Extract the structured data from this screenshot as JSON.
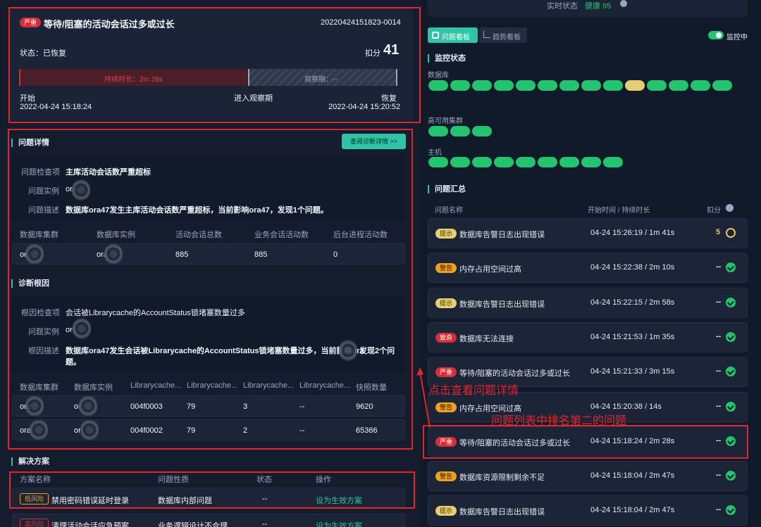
{
  "left": {
    "header": {
      "severity": "严重",
      "title": "等待/阻塞的活动会话过多或过长",
      "id": "20220424151823-0014",
      "status": "状态：已恢复",
      "score_label": "扣分",
      "score_value": "41",
      "duration_bar_label": "持续时长：2m 28s",
      "observe_bar_label": "观察期：--",
      "start_label": "开始",
      "start_time": "2022-04-24 15:18:24",
      "observe_label": "进入观察期",
      "recover_label": "恢复",
      "recover_time": "2022-04-24 15:20:52"
    },
    "detail": {
      "section_title": "问题详情",
      "view_button": "查阅诊断详情 >>",
      "check_item_label": "问题检查项",
      "check_item_value": "主库活动会话数严重超标",
      "instance_label": "问题实例",
      "instance_value": "ora",
      "desc_label": "问题描述",
      "desc_value": "数据库ora47发生主库活动会话数严重超标，当前影响ora47，发现1个问题。",
      "columns": [
        "数据库集群",
        "数据库实例",
        "活动会话总数",
        "业务会话活动数",
        "后台进程活动数"
      ],
      "row": [
        "or",
        "ora",
        "885",
        "885",
        "0"
      ]
    },
    "root": {
      "section_title": "诊断根因",
      "check_item_label": "根因检查项",
      "check_item_value": "会话被Librarycache的AccountStatus锁堵塞数量过多",
      "instance_label": "问题实例",
      "instance_value": "ora",
      "desc_label": "根因描述",
      "desc_value_1": "数据库ora47发生会话被Librarycache的AccountStatus锁堵塞数量过多，当前影响ora",
      "desc_value_2": "发现2个问",
      "desc_value_3": "题。",
      "columns": [
        "数据库集群",
        "数据库实例",
        "Librarycache...",
        "Librarycache...",
        "Librarycache...",
        "Librarycache...",
        "快照数量"
      ],
      "rows": [
        [
          "ora",
          "or",
          "004f0003",
          "79",
          "3",
          "--",
          "9620"
        ],
        [
          "ora",
          "or",
          "004f0002",
          "79",
          "2",
          "--",
          "65366"
        ]
      ]
    },
    "solution": {
      "section_title": "解决方案",
      "columns": [
        "方案名称",
        "问题性质",
        "状态",
        "操作"
      ],
      "rows": [
        {
          "risk": "低风险",
          "name": "禁用密码错误延时登录",
          "nature": "数据库内部问题",
          "status": "--",
          "op": "设为生效方案"
        },
        {
          "risk": "高风险",
          "name": "清理活动会话应急预案",
          "nature": "业务逻辑设计不合理...",
          "status": "--",
          "op": "设为生效方案"
        }
      ]
    }
  },
  "right": {
    "realtime_label": "实时状态",
    "realtime_value": "健康 95",
    "tabs": [
      {
        "label": "问题看板"
      },
      {
        "label": "趋势看板"
      }
    ],
    "monitor_label": "监控中",
    "monitor_section": "监控状态",
    "groups": [
      {
        "label": "数据库",
        "count": 14,
        "warn_index": 9
      },
      {
        "label": "高可用集群",
        "count": 3
      },
      {
        "label": "主机",
        "count": 9
      }
    ],
    "summary_section": "问题汇总",
    "summary_columns": [
      "问题名称",
      "开始时间 / 持续时长",
      "扣分"
    ],
    "issues": [
      {
        "tag": "提示",
        "tag_type": "yellow",
        "name": "数据库告警日志出现错误",
        "time": "04-24 15:26:19 / 1m 41s",
        "score": "5",
        "icon": "history-icon"
      },
      {
        "tag": "警告",
        "tag_type": "orange",
        "name": "内存占用空间过高",
        "time": "04-24 15:22:38 / 2m 10s",
        "score": "--",
        "icon": "check-icon"
      },
      {
        "tag": "提示",
        "tag_type": "yellow",
        "name": "数据库告警日志出现错误",
        "time": "04-24 15:22:15 / 2m 58s",
        "score": "--",
        "icon": "check-icon"
      },
      {
        "tag": "致命",
        "tag_type": "red",
        "name": "数据库无法连接",
        "time": "04-24 15:21:53 / 1m 35s",
        "score": "--",
        "icon": "check-icon"
      },
      {
        "tag": "严重",
        "tag_type": "red",
        "name": "等待/阻塞的活动会话过多或过长",
        "time": "04-24 15:21:33 / 3m 15s",
        "score": "--",
        "icon": "check-icon"
      },
      {
        "tag": "警告",
        "tag_type": "orange",
        "name": "内存占用空间过高",
        "time": "04-24 15:20:38 / 14s",
        "score": "--",
        "icon": "check-icon"
      },
      {
        "tag": "严重",
        "tag_type": "red",
        "name": "等待/阻塞的活动会话过多或过长",
        "time": "04-24 15:18:24 / 2m 28s",
        "score": "--",
        "icon": "check-icon"
      },
      {
        "tag": "警告",
        "tag_type": "orange",
        "name": "数据库资源限制剩余不足",
        "time": "04-24 15:18:04 / 2m 47s",
        "score": "--",
        "icon": "check-icon"
      },
      {
        "tag": "提示",
        "tag_type": "yellow",
        "name": "数据库告警日志出现错误",
        "time": "04-24 15:18:04 / 2m 47s",
        "score": "--",
        "icon": "check-icon"
      }
    ]
  },
  "annotations": {
    "click_hint": "点击查看问题详情",
    "second_hint": "问题列表中排名第二的问题"
  }
}
